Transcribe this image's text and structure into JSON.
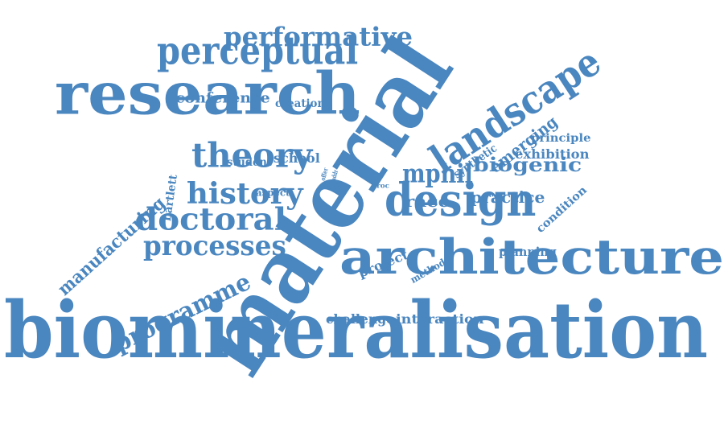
{
  "color": "#4a86bf",
  "words": [
    {
      "id": "biomineralisation",
      "text": "biomineralisation"
    },
    {
      "id": "material",
      "text": "material"
    },
    {
      "id": "research",
      "text": "research"
    },
    {
      "id": "architecture",
      "text": "architecture"
    },
    {
      "id": "design",
      "text": "design"
    },
    {
      "id": "landscape",
      "text": "landscape"
    },
    {
      "id": "perceptual",
      "text": "perceptual"
    },
    {
      "id": "performative",
      "text": "performative"
    },
    {
      "id": "theory",
      "text": "theory"
    },
    {
      "id": "history",
      "text": "history"
    },
    {
      "id": "doctoral",
      "text": "doctoral"
    },
    {
      "id": "processes",
      "text": "processes"
    },
    {
      "id": "programme",
      "text": "programme"
    },
    {
      "id": "manufacturing",
      "text": "manufacturing"
    },
    {
      "id": "mphil",
      "text": "mphil"
    },
    {
      "id": "biogenic",
      "text": "biogenic"
    },
    {
      "id": "emerging",
      "text": "emerging"
    },
    {
      "id": "conference",
      "text": "conference"
    },
    {
      "id": "creation",
      "text": "creation"
    },
    {
      "id": "student",
      "text": "student"
    },
    {
      "id": "school",
      "text": "school"
    },
    {
      "id": "bartlett",
      "text": "bartlett"
    },
    {
      "id": "aspect",
      "text": "aspect"
    },
    {
      "id": "route",
      "text": "route"
    },
    {
      "id": "offer",
      "text": "offer"
    },
    {
      "id": "addr",
      "text": "addr"
    },
    {
      "id": "proc",
      "text": "proc"
    },
    {
      "id": "synthetic",
      "text": "synthetic"
    },
    {
      "id": "principle",
      "text": "principle"
    },
    {
      "id": "exhibition",
      "text": "exhibition"
    },
    {
      "id": "race",
      "text": "race"
    },
    {
      "id": "practice",
      "text": "practice"
    },
    {
      "id": "condition",
      "text": "condition"
    },
    {
      "id": "project",
      "text": "project"
    },
    {
      "id": "method",
      "text": "method"
    },
    {
      "id": "planning",
      "text": "planning"
    },
    {
      "id": "challenge",
      "text": "challenge"
    },
    {
      "id": "interaction",
      "text": "interaction"
    }
  ]
}
